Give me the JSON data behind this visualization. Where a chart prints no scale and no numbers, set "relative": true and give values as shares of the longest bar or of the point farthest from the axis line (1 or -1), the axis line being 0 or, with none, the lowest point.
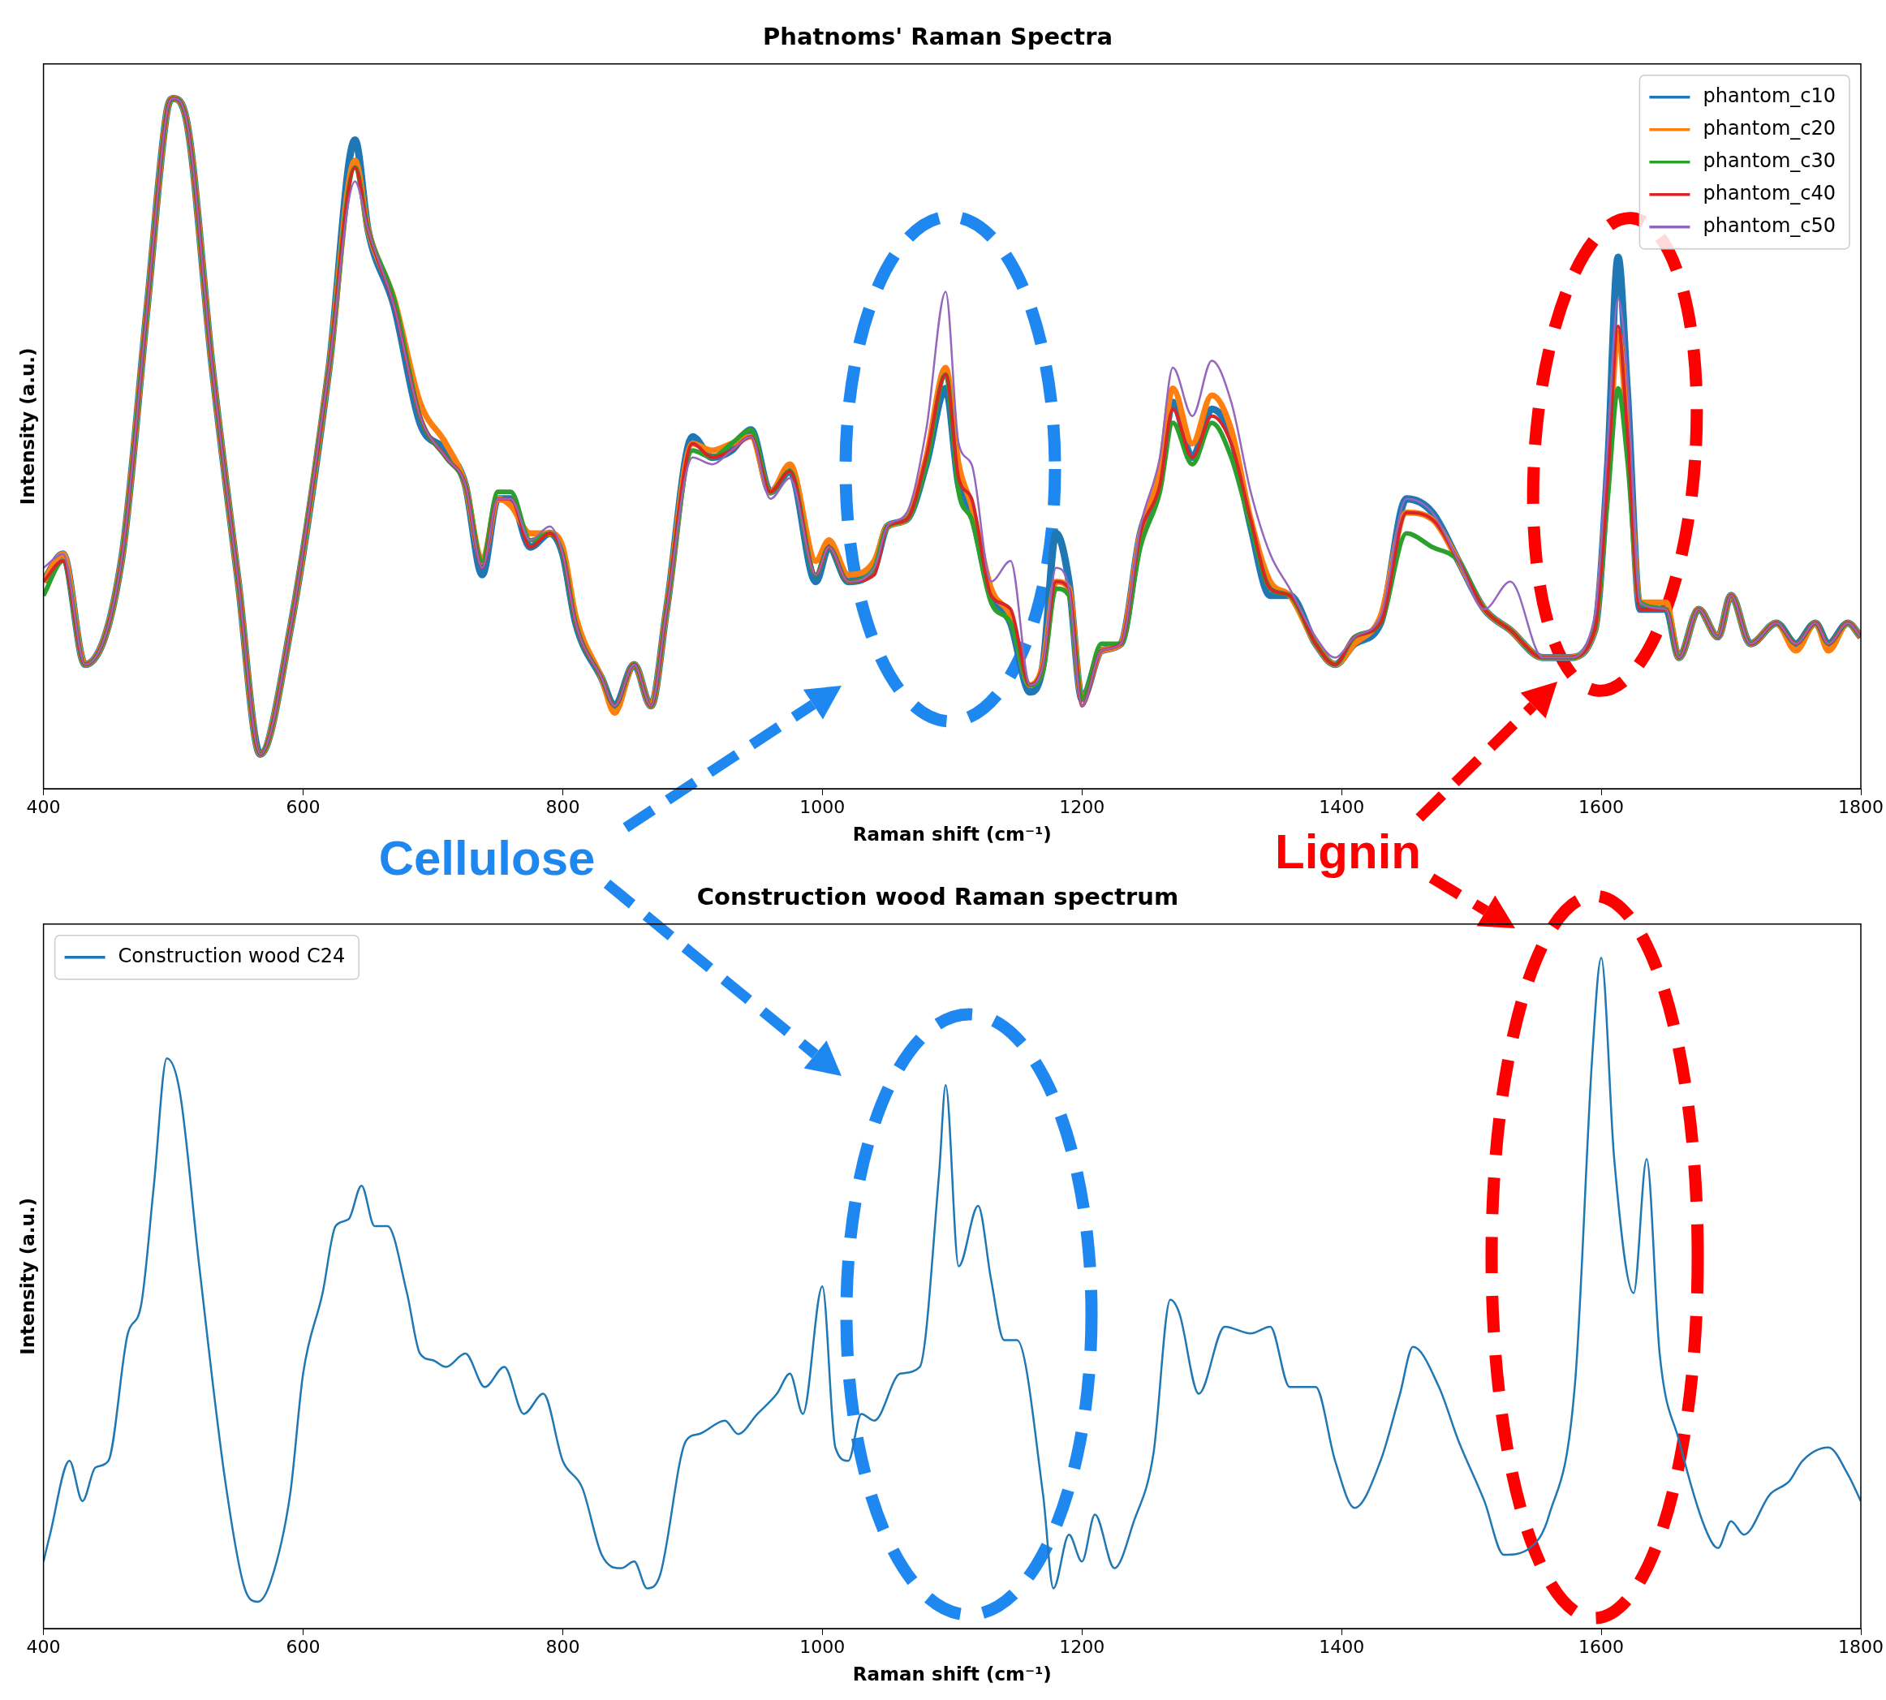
{
  "chart_data": [
    {
      "type": "line",
      "title": "Phatnoms' Raman Spectra",
      "xlabel": "Raman shift (cm⁻¹)",
      "ylabel": "Intensity (a.u.)",
      "relative": true,
      "xlim": [
        400,
        1800
      ],
      "xticks": [
        400,
        600,
        800,
        1000,
        1200,
        1400,
        1600,
        1800
      ],
      "legend": "top right",
      "annotations": [
        "Cellulose",
        "Lignin"
      ],
      "x": [
        400,
        415,
        432,
        460,
        480,
        495,
        500,
        510,
        530,
        550,
        567,
        590,
        620,
        640,
        650,
        670,
        690,
        710,
        725,
        738,
        750,
        760,
        775,
        790,
        800,
        810,
        830,
        840,
        855,
        868,
        880,
        900,
        915,
        930,
        945,
        960,
        975,
        995,
        1005,
        1020,
        1040,
        1050,
        1065,
        1080,
        1095,
        1105,
        1115,
        1130,
        1145,
        1160,
        1170,
        1180,
        1190,
        1200,
        1215,
        1230,
        1245,
        1260,
        1270,
        1285,
        1300,
        1315,
        1330,
        1345,
        1360,
        1380,
        1395,
        1410,
        1430,
        1450,
        1470,
        1490,
        1510,
        1530,
        1555,
        1575,
        1595,
        1605,
        1613,
        1620,
        1630,
        1650,
        1660,
        1675,
        1690,
        1700,
        1715,
        1735,
        1750,
        1765,
        1775,
        1790,
        1800
      ],
      "series": [
        {
          "name": "phantom_c10",
          "color": "#1f77b4",
          "values": [
            0.3,
            0.34,
            0.18,
            0.33,
            0.7,
            0.98,
            1.0,
            0.97,
            0.61,
            0.3,
            0.05,
            0.23,
            0.61,
            0.94,
            0.81,
            0.7,
            0.53,
            0.49,
            0.44,
            0.31,
            0.42,
            0.42,
            0.35,
            0.37,
            0.34,
            0.24,
            0.16,
            0.12,
            0.18,
            0.12,
            0.26,
            0.51,
            0.48,
            0.49,
            0.52,
            0.43,
            0.46,
            0.3,
            0.35,
            0.3,
            0.32,
            0.38,
            0.39,
            0.47,
            0.58,
            0.44,
            0.4,
            0.28,
            0.24,
            0.14,
            0.18,
            0.37,
            0.3,
            0.13,
            0.2,
            0.21,
            0.37,
            0.45,
            0.56,
            0.48,
            0.55,
            0.51,
            0.38,
            0.28,
            0.28,
            0.21,
            0.18,
            0.21,
            0.24,
            0.42,
            0.4,
            0.33,
            0.26,
            0.23,
            0.19,
            0.19,
            0.23,
            0.47,
            0.77,
            0.58,
            0.26,
            0.26,
            0.19,
            0.26,
            0.22,
            0.28,
            0.21,
            0.24,
            0.21,
            0.24,
            0.21,
            0.24,
            0.22
          ]
        },
        {
          "name": "phantom_c20",
          "color": "#ff7f0e",
          "values": [
            0.3,
            0.34,
            0.18,
            0.33,
            0.7,
            0.98,
            1.0,
            0.97,
            0.61,
            0.3,
            0.05,
            0.23,
            0.61,
            0.91,
            0.81,
            0.71,
            0.56,
            0.5,
            0.44,
            0.33,
            0.42,
            0.41,
            0.37,
            0.37,
            0.35,
            0.25,
            0.16,
            0.11,
            0.18,
            0.12,
            0.26,
            0.5,
            0.49,
            0.5,
            0.51,
            0.43,
            0.47,
            0.33,
            0.36,
            0.31,
            0.33,
            0.38,
            0.39,
            0.48,
            0.61,
            0.47,
            0.41,
            0.29,
            0.25,
            0.15,
            0.18,
            0.3,
            0.29,
            0.13,
            0.2,
            0.21,
            0.37,
            0.46,
            0.58,
            0.5,
            0.57,
            0.52,
            0.39,
            0.3,
            0.28,
            0.21,
            0.18,
            0.21,
            0.25,
            0.4,
            0.39,
            0.33,
            0.26,
            0.23,
            0.19,
            0.19,
            0.23,
            0.45,
            0.66,
            0.52,
            0.27,
            0.27,
            0.19,
            0.26,
            0.22,
            0.28,
            0.21,
            0.24,
            0.2,
            0.24,
            0.2,
            0.24,
            0.22
          ]
        },
        {
          "name": "phantom_c30",
          "color": "#2ca02c",
          "values": [
            0.28,
            0.33,
            0.18,
            0.33,
            0.7,
            0.98,
            1.0,
            0.97,
            0.61,
            0.3,
            0.05,
            0.23,
            0.61,
            0.9,
            0.81,
            0.71,
            0.54,
            0.48,
            0.44,
            0.33,
            0.43,
            0.43,
            0.36,
            0.37,
            0.34,
            0.24,
            0.16,
            0.12,
            0.18,
            0.12,
            0.26,
            0.49,
            0.48,
            0.5,
            0.52,
            0.43,
            0.46,
            0.31,
            0.35,
            0.3,
            0.32,
            0.38,
            0.39,
            0.47,
            0.6,
            0.43,
            0.39,
            0.27,
            0.24,
            0.15,
            0.17,
            0.29,
            0.28,
            0.13,
            0.21,
            0.21,
            0.35,
            0.43,
            0.53,
            0.47,
            0.53,
            0.48,
            0.38,
            0.29,
            0.28,
            0.21,
            0.18,
            0.22,
            0.24,
            0.37,
            0.35,
            0.33,
            0.26,
            0.23,
            0.19,
            0.19,
            0.23,
            0.42,
            0.58,
            0.48,
            0.27,
            0.26,
            0.19,
            0.26,
            0.22,
            0.28,
            0.21,
            0.24,
            0.21,
            0.24,
            0.21,
            0.24,
            0.22
          ]
        },
        {
          "name": "phantom_c40",
          "color": "#d62728",
          "values": [
            0.3,
            0.33,
            0.18,
            0.33,
            0.7,
            0.98,
            1.0,
            0.97,
            0.61,
            0.3,
            0.05,
            0.23,
            0.61,
            0.9,
            0.81,
            0.7,
            0.54,
            0.48,
            0.44,
            0.32,
            0.42,
            0.42,
            0.35,
            0.37,
            0.34,
            0.24,
            0.16,
            0.12,
            0.18,
            0.12,
            0.26,
            0.5,
            0.48,
            0.49,
            0.51,
            0.43,
            0.46,
            0.31,
            0.35,
            0.3,
            0.31,
            0.38,
            0.39,
            0.48,
            0.6,
            0.45,
            0.42,
            0.28,
            0.26,
            0.15,
            0.18,
            0.3,
            0.29,
            0.12,
            0.2,
            0.21,
            0.37,
            0.44,
            0.55,
            0.48,
            0.54,
            0.5,
            0.39,
            0.29,
            0.28,
            0.21,
            0.18,
            0.22,
            0.24,
            0.4,
            0.39,
            0.33,
            0.26,
            0.23,
            0.19,
            0.19,
            0.23,
            0.45,
            0.67,
            0.52,
            0.26,
            0.26,
            0.19,
            0.26,
            0.22,
            0.28,
            0.21,
            0.24,
            0.21,
            0.24,
            0.21,
            0.24,
            0.22
          ]
        },
        {
          "name": "phantom_c50",
          "color": "#9467bd",
          "values": [
            0.32,
            0.34,
            0.18,
            0.33,
            0.7,
            0.98,
            1.0,
            0.97,
            0.61,
            0.3,
            0.05,
            0.23,
            0.61,
            0.88,
            0.81,
            0.7,
            0.54,
            0.48,
            0.44,
            0.32,
            0.42,
            0.42,
            0.36,
            0.38,
            0.34,
            0.24,
            0.16,
            0.12,
            0.18,
            0.12,
            0.26,
            0.48,
            0.47,
            0.49,
            0.51,
            0.42,
            0.45,
            0.31,
            0.35,
            0.3,
            0.32,
            0.38,
            0.4,
            0.52,
            0.72,
            0.5,
            0.47,
            0.3,
            0.33,
            0.15,
            0.18,
            0.32,
            0.29,
            0.12,
            0.2,
            0.21,
            0.38,
            0.48,
            0.61,
            0.54,
            0.62,
            0.56,
            0.43,
            0.34,
            0.29,
            0.22,
            0.19,
            0.22,
            0.25,
            0.42,
            0.4,
            0.33,
            0.26,
            0.3,
            0.19,
            0.19,
            0.25,
            0.5,
            0.71,
            0.6,
            0.27,
            0.26,
            0.19,
            0.26,
            0.22,
            0.28,
            0.21,
            0.24,
            0.21,
            0.24,
            0.21,
            0.24,
            0.22
          ]
        }
      ]
    },
    {
      "type": "line",
      "title": "Construction wood Raman spectrum",
      "xlabel": "Raman shift (cm⁻¹)",
      "ylabel": "Intensity (a.u.)",
      "relative": true,
      "xlim": [
        400,
        1800
      ],
      "xticks": [
        400,
        600,
        800,
        1000,
        1200,
        1400,
        1600,
        1800
      ],
      "legend": "top left",
      "x": [
        400,
        405,
        420,
        430,
        440,
        450,
        465,
        475,
        485,
        495,
        505,
        520,
        540,
        555,
        565,
        575,
        590,
        600,
        615,
        625,
        635,
        645,
        655,
        665,
        680,
        690,
        700,
        710,
        725,
        740,
        755,
        770,
        785,
        800,
        815,
        830,
        845,
        855,
        865,
        875,
        895,
        905,
        925,
        935,
        950,
        965,
        975,
        985,
        1000,
        1010,
        1020,
        1030,
        1040,
        1060,
        1075,
        1090,
        1095,
        1105,
        1120,
        1130,
        1140,
        1150,
        1170,
        1178,
        1190,
        1200,
        1210,
        1225,
        1240,
        1255,
        1268,
        1275,
        1290,
        1310,
        1330,
        1345,
        1360,
        1380,
        1395,
        1410,
        1430,
        1445,
        1455,
        1475,
        1490,
        1510,
        1525,
        1545,
        1560,
        1580,
        1593,
        1600,
        1610,
        1625,
        1635,
        1645,
        1660,
        1680,
        1690,
        1700,
        1710,
        1730,
        1745,
        1755,
        1775,
        1790,
        1800
      ],
      "series": [
        {
          "name": "Construction wood C24",
          "color": "#1f77b4",
          "values": [
            0.1,
            0.14,
            0.25,
            0.19,
            0.24,
            0.25,
            0.44,
            0.48,
            0.66,
            0.85,
            0.8,
            0.54,
            0.22,
            0.06,
            0.04,
            0.07,
            0.2,
            0.38,
            0.5,
            0.6,
            0.61,
            0.66,
            0.6,
            0.6,
            0.5,
            0.41,
            0.4,
            0.39,
            0.41,
            0.36,
            0.39,
            0.32,
            0.35,
            0.25,
            0.21,
            0.11,
            0.09,
            0.1,
            0.06,
            0.08,
            0.28,
            0.29,
            0.31,
            0.29,
            0.32,
            0.35,
            0.38,
            0.32,
            0.51,
            0.27,
            0.25,
            0.32,
            0.31,
            0.38,
            0.39,
            0.68,
            0.81,
            0.54,
            0.63,
            0.52,
            0.43,
            0.43,
            0.2,
            0.06,
            0.14,
            0.1,
            0.17,
            0.09,
            0.16,
            0.26,
            0.49,
            0.47,
            0.35,
            0.45,
            0.44,
            0.45,
            0.36,
            0.36,
            0.25,
            0.18,
            0.25,
            0.35,
            0.42,
            0.36,
            0.28,
            0.19,
            0.11,
            0.12,
            0.17,
            0.37,
            0.85,
            1.0,
            0.7,
            0.5,
            0.7,
            0.41,
            0.28,
            0.15,
            0.12,
            0.16,
            0.14,
            0.2,
            0.22,
            0.25,
            0.27,
            0.23,
            0.19
          ]
        }
      ]
    }
  ]
}
